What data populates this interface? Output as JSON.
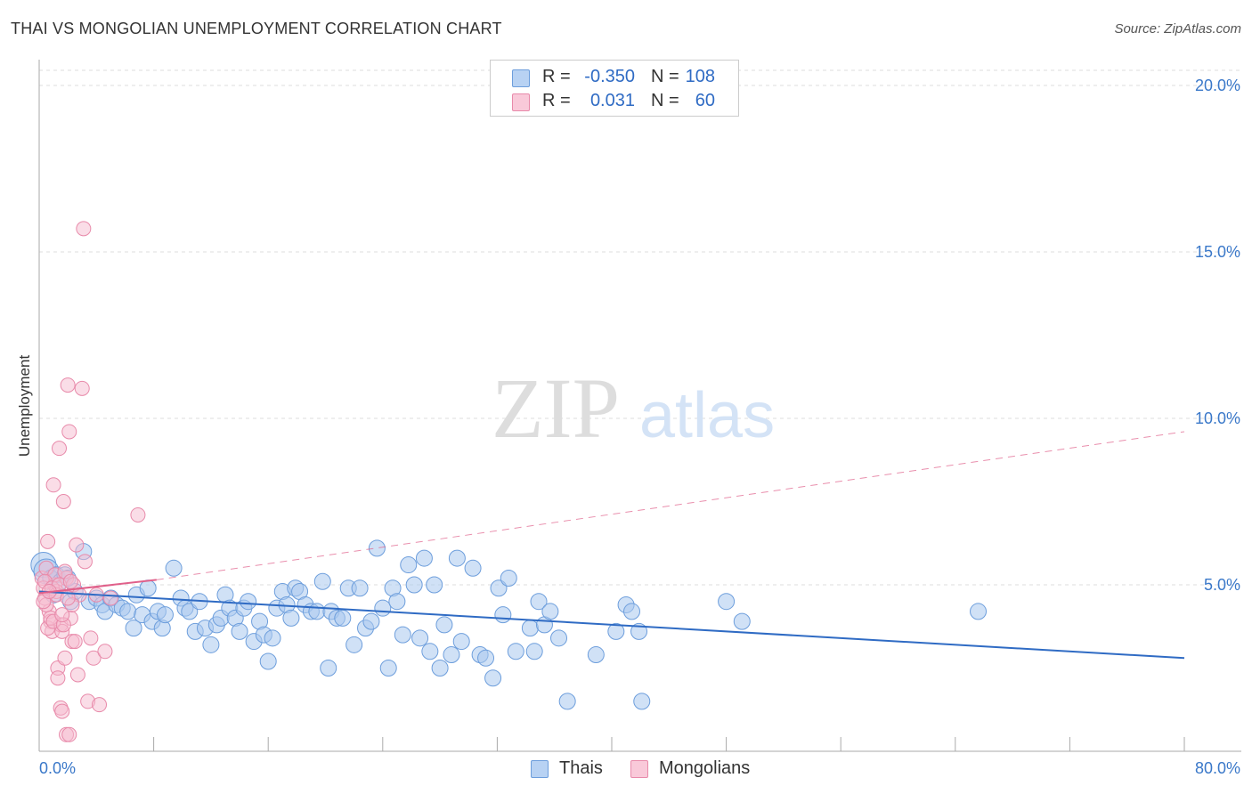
{
  "title": "THAI VS MONGOLIAN UNEMPLOYMENT CORRELATION CHART",
  "source": "Source: ZipAtlas.com",
  "colors": {
    "thais_fill": "#a9c8ef",
    "thais_stroke": "#6d9edc",
    "thais_line": "#2f6bc4",
    "mongolians_fill": "#f6bcd0",
    "mongolians_stroke": "#e88aaa",
    "mongolians_line": "#e0608a",
    "axis_text": "#3a78c9",
    "grid": "#dddddd"
  },
  "legend": {
    "rows": [
      {
        "series": "Thais",
        "r_label": "R =",
        "r_value": "-0.350",
        "n_label": "N =",
        "n_value": "108"
      },
      {
        "series": "Mongolians",
        "r_label": "R =",
        "r_value": "0.031",
        "n_label": "N =",
        "n_value": "60"
      }
    ]
  },
  "bottom_legend": [
    "Thais",
    "Mongolians"
  ],
  "watermark": {
    "zip": "ZIP",
    "atlas": "atlas"
  },
  "chart_data": {
    "type": "scatter",
    "title": "THAI VS MONGOLIAN UNEMPLOYMENT CORRELATION CHART",
    "xlabel": "",
    "ylabel": "Unemployment",
    "xlim": [
      0,
      80
    ],
    "ylim": [
      0,
      20
    ],
    "x_tick_labels": [
      "0.0%",
      "80.0%"
    ],
    "y_ticks": [
      5,
      10,
      15,
      20
    ],
    "y_tick_labels": [
      "5.0%",
      "10.0%",
      "15.0%",
      "20.0%"
    ],
    "grid": true,
    "legend_position": "top-center",
    "series": [
      {
        "name": "Thais",
        "r": -0.35,
        "n": 108,
        "trend": {
          "x0": 0,
          "y0": 4.8,
          "x1": 80,
          "y1": 2.8
        },
        "points": [
          [
            0.3,
            5.6
          ],
          [
            0.5,
            5.4
          ],
          [
            0.8,
            5.2
          ],
          [
            1.2,
            5.3
          ],
          [
            1.5,
            5.1
          ],
          [
            1.8,
            5.3
          ],
          [
            2.2,
            4.5
          ],
          [
            2.5,
            4.8
          ],
          [
            3.1,
            6.0
          ],
          [
            3.5,
            4.5
          ],
          [
            4.0,
            4.6
          ],
          [
            4.4,
            4.4
          ],
          [
            4.6,
            4.2
          ],
          [
            5.0,
            4.6
          ],
          [
            5.4,
            4.4
          ],
          [
            5.8,
            4.3
          ],
          [
            6.2,
            4.2
          ],
          [
            6.6,
            3.7
          ],
          [
            6.8,
            4.7
          ],
          [
            7.2,
            4.1
          ],
          [
            7.6,
            4.9
          ],
          [
            7.9,
            3.9
          ],
          [
            8.3,
            4.2
          ],
          [
            8.6,
            3.7
          ],
          [
            8.8,
            4.1
          ],
          [
            9.4,
            5.5
          ],
          [
            9.9,
            4.6
          ],
          [
            10.2,
            4.3
          ],
          [
            10.5,
            4.2
          ],
          [
            10.9,
            3.6
          ],
          [
            11.2,
            4.5
          ],
          [
            11.6,
            3.7
          ],
          [
            12.0,
            3.2
          ],
          [
            12.4,
            3.8
          ],
          [
            12.7,
            4.0
          ],
          [
            13.0,
            4.7
          ],
          [
            13.3,
            4.3
          ],
          [
            13.7,
            4.0
          ],
          [
            14.0,
            3.6
          ],
          [
            14.3,
            4.3
          ],
          [
            14.6,
            4.5
          ],
          [
            15.0,
            3.3
          ],
          [
            15.4,
            3.9
          ],
          [
            15.7,
            3.5
          ],
          [
            16.0,
            2.7
          ],
          [
            16.3,
            3.4
          ],
          [
            16.6,
            4.3
          ],
          [
            17.0,
            4.8
          ],
          [
            17.3,
            4.4
          ],
          [
            17.6,
            4.0
          ],
          [
            17.9,
            4.9
          ],
          [
            18.2,
            4.8
          ],
          [
            18.6,
            4.4
          ],
          [
            19.0,
            4.2
          ],
          [
            19.4,
            4.2
          ],
          [
            19.8,
            5.1
          ],
          [
            20.2,
            2.5
          ],
          [
            20.4,
            4.2
          ],
          [
            20.8,
            4.0
          ],
          [
            21.2,
            4.0
          ],
          [
            21.6,
            4.9
          ],
          [
            22.0,
            3.2
          ],
          [
            22.4,
            4.9
          ],
          [
            22.8,
            3.7
          ],
          [
            23.2,
            3.9
          ],
          [
            23.6,
            6.1
          ],
          [
            24.0,
            4.3
          ],
          [
            24.4,
            2.5
          ],
          [
            24.7,
            4.9
          ],
          [
            25.0,
            4.5
          ],
          [
            25.4,
            3.5
          ],
          [
            25.8,
            5.6
          ],
          [
            26.2,
            5.0
          ],
          [
            26.6,
            3.4
          ],
          [
            26.9,
            5.8
          ],
          [
            27.3,
            3.0
          ],
          [
            27.6,
            5.0
          ],
          [
            28.0,
            2.5
          ],
          [
            28.3,
            3.8
          ],
          [
            28.8,
            2.9
          ],
          [
            29.2,
            5.8
          ],
          [
            29.5,
            3.3
          ],
          [
            30.3,
            5.5
          ],
          [
            30.8,
            2.9
          ],
          [
            31.2,
            2.8
          ],
          [
            31.7,
            2.2
          ],
          [
            32.1,
            4.9
          ],
          [
            32.4,
            4.1
          ],
          [
            32.8,
            5.2
          ],
          [
            33.3,
            3.0
          ],
          [
            34.3,
            3.7
          ],
          [
            34.6,
            3.0
          ],
          [
            34.9,
            4.5
          ],
          [
            35.3,
            3.8
          ],
          [
            35.7,
            4.2
          ],
          [
            36.3,
            3.4
          ],
          [
            36.9,
            1.5
          ],
          [
            38.9,
            2.9
          ],
          [
            40.3,
            3.6
          ],
          [
            41.0,
            4.4
          ],
          [
            41.4,
            4.2
          ],
          [
            41.9,
            3.6
          ],
          [
            42.1,
            1.5
          ],
          [
            48.0,
            4.5
          ],
          [
            49.1,
            3.9
          ],
          [
            65.6,
            4.2
          ],
          [
            1.0,
            4.7
          ],
          [
            2.0,
            5.2
          ]
        ]
      },
      {
        "name": "Mongolians",
        "r": 0.031,
        "n": 60,
        "trend_solid": {
          "x0": 0,
          "y0": 4.75,
          "x1": 8.2,
          "y1": 5.15
        },
        "trend_dashed": {
          "x0": 8.2,
          "y0": 5.15,
          "x1": 80,
          "y1": 9.6
        },
        "points": [
          [
            0.2,
            5.2
          ],
          [
            0.3,
            4.9
          ],
          [
            0.4,
            4.6
          ],
          [
            0.5,
            5.5
          ],
          [
            0.6,
            6.3
          ],
          [
            0.7,
            4.2
          ],
          [
            0.8,
            3.9
          ],
          [
            0.9,
            3.6
          ],
          [
            1.0,
            8.0
          ],
          [
            1.1,
            5.0
          ],
          [
            1.2,
            4.8
          ],
          [
            1.3,
            2.5
          ],
          [
            1.4,
            9.1
          ],
          [
            1.5,
            3.8
          ],
          [
            1.6,
            3.6
          ],
          [
            1.7,
            7.5
          ],
          [
            1.8,
            2.8
          ],
          [
            1.9,
            5.2
          ],
          [
            2.0,
            11.0
          ],
          [
            2.1,
            9.6
          ],
          [
            2.2,
            4.0
          ],
          [
            2.3,
            3.3
          ],
          [
            2.4,
            5.0
          ],
          [
            2.6,
            6.2
          ],
          [
            2.8,
            4.7
          ],
          [
            3.0,
            10.9
          ],
          [
            3.2,
            5.7
          ],
          [
            3.4,
            1.5
          ],
          [
            3.6,
            3.4
          ],
          [
            3.8,
            2.8
          ],
          [
            4.2,
            1.4
          ],
          [
            4.6,
            3.0
          ],
          [
            5.0,
            4.6
          ],
          [
            6.9,
            7.1
          ],
          [
            3.1,
            15.7
          ],
          [
            0.5,
            4.4
          ],
          [
            0.6,
            3.7
          ],
          [
            0.8,
            4.0
          ],
          [
            1.0,
            3.9
          ],
          [
            1.1,
            5.3
          ],
          [
            1.3,
            2.2
          ],
          [
            1.5,
            1.3
          ],
          [
            1.6,
            1.2
          ],
          [
            1.7,
            3.8
          ],
          [
            1.9,
            0.5
          ],
          [
            2.1,
            0.5
          ],
          [
            2.3,
            4.4
          ],
          [
            2.5,
            3.3
          ],
          [
            2.7,
            2.3
          ],
          [
            0.4,
            5.1
          ],
          [
            0.9,
            4.9
          ],
          [
            1.2,
            4.7
          ],
          [
            1.4,
            5.0
          ],
          [
            1.8,
            5.4
          ],
          [
            2.0,
            4.6
          ],
          [
            2.2,
            5.1
          ],
          [
            0.3,
            4.5
          ],
          [
            0.7,
            4.8
          ],
          [
            1.6,
            4.1
          ],
          [
            4.0,
            4.7
          ]
        ]
      }
    ]
  }
}
